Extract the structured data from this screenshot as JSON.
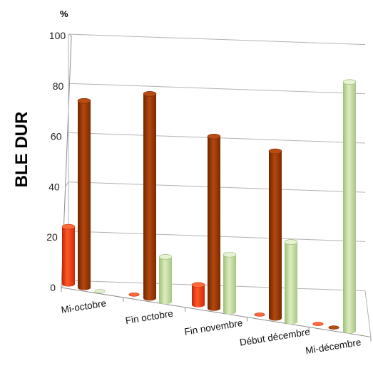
{
  "chart_data": {
    "type": "bar",
    "style": "3d-cylinder",
    "categories": [
      "Mi-octobre",
      "Fin octobre",
      "Fin novembre",
      "Début décembre",
      "Mi-décembre"
    ],
    "series": [
      {
        "values": [
          23,
          1,
          8,
          1,
          1
        ],
        "color": "#ff3b0f"
      },
      {
        "values": [
          75,
          82,
          69,
          67,
          1
        ],
        "color": "#a33d05"
      },
      {
        "values": [
          0,
          18,
          23,
          32,
          100
        ],
        "color": "#c4dca0"
      }
    ],
    "ylabel": "BLE DUR",
    "unit_label": "%",
    "ylim": [
      0,
      100
    ],
    "yticks": [
      "0",
      "20",
      "40",
      "60",
      "80",
      "100"
    ],
    "grid": true,
    "legend": "none"
  }
}
